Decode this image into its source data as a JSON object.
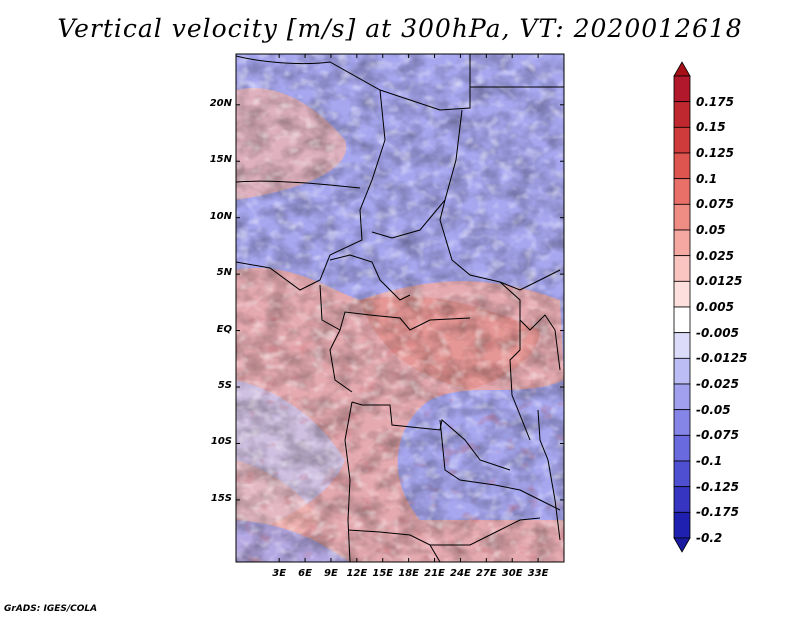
{
  "title": "Vertical velocity [m/s] at 300hPa, VT: 2020012618",
  "credit": "GrADS: IGES/COLA",
  "map": {
    "lon_range": [
      -2,
      36
    ],
    "lat_range": [
      -20.5,
      24.5
    ],
    "lat_ticks": [
      {
        "value": 20,
        "label": "20N"
      },
      {
        "value": 15,
        "label": "15N"
      },
      {
        "value": 10,
        "label": "10N"
      },
      {
        "value": 5,
        "label": "5N"
      },
      {
        "value": 0,
        "label": "EQ"
      },
      {
        "value": -5,
        "label": "5S"
      },
      {
        "value": -10,
        "label": "10S"
      },
      {
        "value": -15,
        "label": "15S"
      }
    ],
    "lon_ticks": [
      {
        "value": 3,
        "label": "3E"
      },
      {
        "value": 6,
        "label": "6E"
      },
      {
        "value": 9,
        "label": "9E"
      },
      {
        "value": 12,
        "label": "12E"
      },
      {
        "value": 15,
        "label": "15E"
      },
      {
        "value": 18,
        "label": "18E"
      },
      {
        "value": 21,
        "label": "21E"
      },
      {
        "value": 24,
        "label": "24E"
      },
      {
        "value": 27,
        "label": "27E"
      },
      {
        "value": 30,
        "label": "30E"
      },
      {
        "value": 33,
        "label": "33E"
      }
    ]
  },
  "colorbar": {
    "levels": [
      {
        "label": "0.175",
        "color": "#b2182b"
      },
      {
        "label": "0.15",
        "color": "#c0282f"
      },
      {
        "label": "0.125",
        "color": "#cf3b3b"
      },
      {
        "label": "0.1",
        "color": "#de5550"
      },
      {
        "label": "0.075",
        "color": "#e87068"
      },
      {
        "label": "0.05",
        "color": "#ef8c84"
      },
      {
        "label": "0.025",
        "color": "#f5a8a2"
      },
      {
        "label": "0.0125",
        "color": "#fac4c0"
      },
      {
        "label": "0.005",
        "color": "#fde0dd"
      },
      {
        "label": "-0.005",
        "color": "#ffffff"
      },
      {
        "label": "-0.0125",
        "color": "#dcdcfa"
      },
      {
        "label": "-0.025",
        "color": "#bdbdf5"
      },
      {
        "label": "-0.05",
        "color": "#a0a0ef"
      },
      {
        "label": "-0.075",
        "color": "#8585e8"
      },
      {
        "label": "-0.1",
        "color": "#6a6adf"
      },
      {
        "label": "-0.125",
        "color": "#4f4fd2"
      },
      {
        "label": "-0.175",
        "color": "#3535c2"
      },
      {
        "label": "-0.2",
        "color": "#2020b0"
      }
    ],
    "top_color": "#a50f15",
    "bottom_color": "#1a1aa0"
  }
}
